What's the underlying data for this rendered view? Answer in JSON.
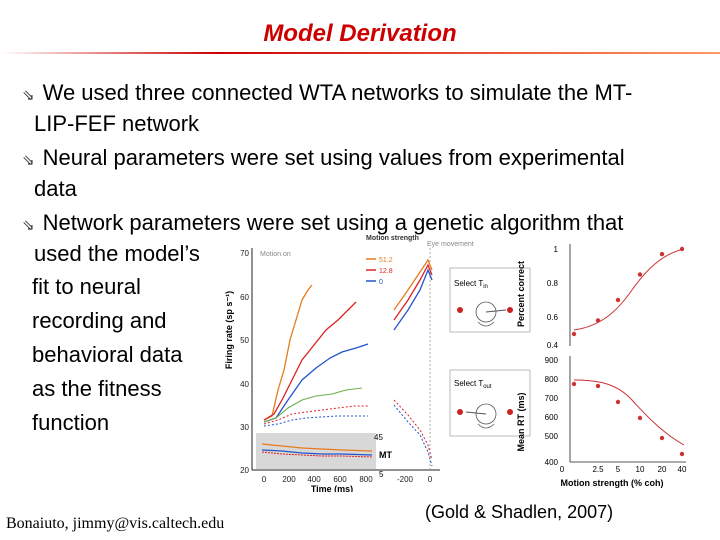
{
  "slide": {
    "title": "Model Derivation",
    "bullets": [
      {
        "line1": "We used three connected WTA networks to simulate the MT-",
        "line2": "LIP-FEF network"
      },
      {
        "line1": "Neural parameters were set using values from experimental",
        "line2": "data"
      },
      {
        "line1": "Network parameters were set using a genetic algorithm that",
        "line2": "used the model’s"
      }
    ],
    "continuation": [
      "fit to neural",
      "recording and",
      "behavioral data",
      "as the fitness",
      "function"
    ],
    "author_footer": "Bonaiuto, jimmy@vis.caltech.edu",
    "citation": "(Gold & Shadlen, 2007)",
    "bullet_icon": "hollow-arrow-icon",
    "title_color": "#cc0000"
  },
  "figure": {
    "left_panel": {
      "ylabel": "Firing rate (sp s⁻¹)",
      "xlabel": "Time (ms)",
      "yticks": [
        "70",
        "60",
        "50",
        "40",
        "30",
        "20"
      ],
      "xticks_a": [
        "0",
        "200",
        "400",
        "600",
        "800"
      ],
      "xticks_b": [
        "-200",
        "0"
      ],
      "label_motion_on": "Motion on",
      "label_eye": "Eye movement",
      "legend_title": "Motion strength",
      "legend_items": [
        "51.2",
        "12.8",
        "0"
      ],
      "legend_colors": [
        "#e87a1c",
        "#dd2222",
        "#2255cc"
      ],
      "mt_label": "MT",
      "mt_ticks": [
        "45",
        "5"
      ],
      "select_in": "Select T",
      "select_in_sub": "in",
      "select_out": "Select T",
      "select_out_sub": "out"
    },
    "right_panel": {
      "ylabel_top": "Percent correct",
      "ylabel_bottom": "Mean RT (ms)",
      "xlabel": "Motion strength (% coh)",
      "yticks_top": [
        "1",
        "0.8",
        "0.6",
        "0.4"
      ],
      "yticks_bottom": [
        "900",
        "800",
        "700",
        "600",
        "500",
        "400"
      ],
      "xticks": [
        "0",
        "2.5",
        "5",
        "10",
        "20",
        "40"
      ],
      "pc_points": [
        0.5,
        0.58,
        0.7,
        0.85,
        0.97,
        1.0
      ],
      "rt_points": [
        790,
        780,
        700,
        620,
        520,
        440
      ]
    }
  }
}
